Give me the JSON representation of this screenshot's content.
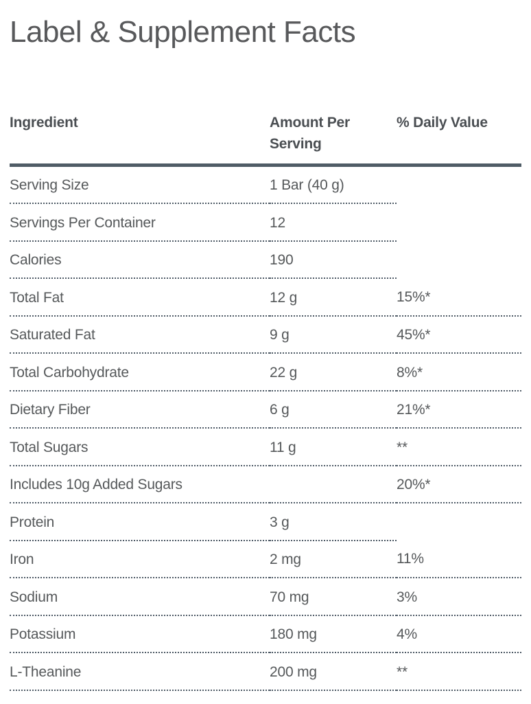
{
  "page": {
    "title": "Label & Supplement Facts"
  },
  "table": {
    "columns": [
      {
        "label": "Ingredient"
      },
      {
        "label": "Amount Per Serving"
      },
      {
        "label": "% Daily Value"
      }
    ],
    "rows": [
      {
        "ingredient": "Serving Size",
        "amount": "1 Bar (40 g)",
        "daily_value": ""
      },
      {
        "ingredient": "Servings Per Container",
        "amount": "12",
        "daily_value": ""
      },
      {
        "ingredient": "Calories",
        "amount": "190",
        "daily_value": ""
      },
      {
        "ingredient": "Total Fat",
        "amount": "12 g",
        "daily_value": "15%*"
      },
      {
        "ingredient": "Saturated Fat",
        "amount": "9 g",
        "daily_value": "45%*"
      },
      {
        "ingredient": "Total Carbohydrate",
        "amount": "22 g",
        "daily_value": "8%*"
      },
      {
        "ingredient": "Dietary Fiber",
        "amount": "6 g",
        "daily_value": "21%*"
      },
      {
        "ingredient": "Total Sugars",
        "amount": "11 g",
        "daily_value": "**"
      },
      {
        "ingredient": "Includes 10g Added Sugars",
        "amount": "",
        "daily_value": "20%*"
      },
      {
        "ingredient": "Protein",
        "amount": "3 g",
        "daily_value": ""
      },
      {
        "ingredient": "Iron",
        "amount": "2 mg",
        "daily_value": "11%"
      },
      {
        "ingredient": "Sodium",
        "amount": "70 mg",
        "daily_value": "3%"
      },
      {
        "ingredient": "Potassium",
        "amount": "180 mg",
        "daily_value": "4%"
      },
      {
        "ingredient": "L-Theanine",
        "amount": "200 mg",
        "daily_value": "**"
      }
    ]
  },
  "colors": {
    "title_text": "#58595b",
    "heading_text": "#4a4e52",
    "body_text": "#55585a",
    "accent_border": "#4f5c66",
    "dotted_border": "#4d5965",
    "page_bg": "#ffffff"
  }
}
